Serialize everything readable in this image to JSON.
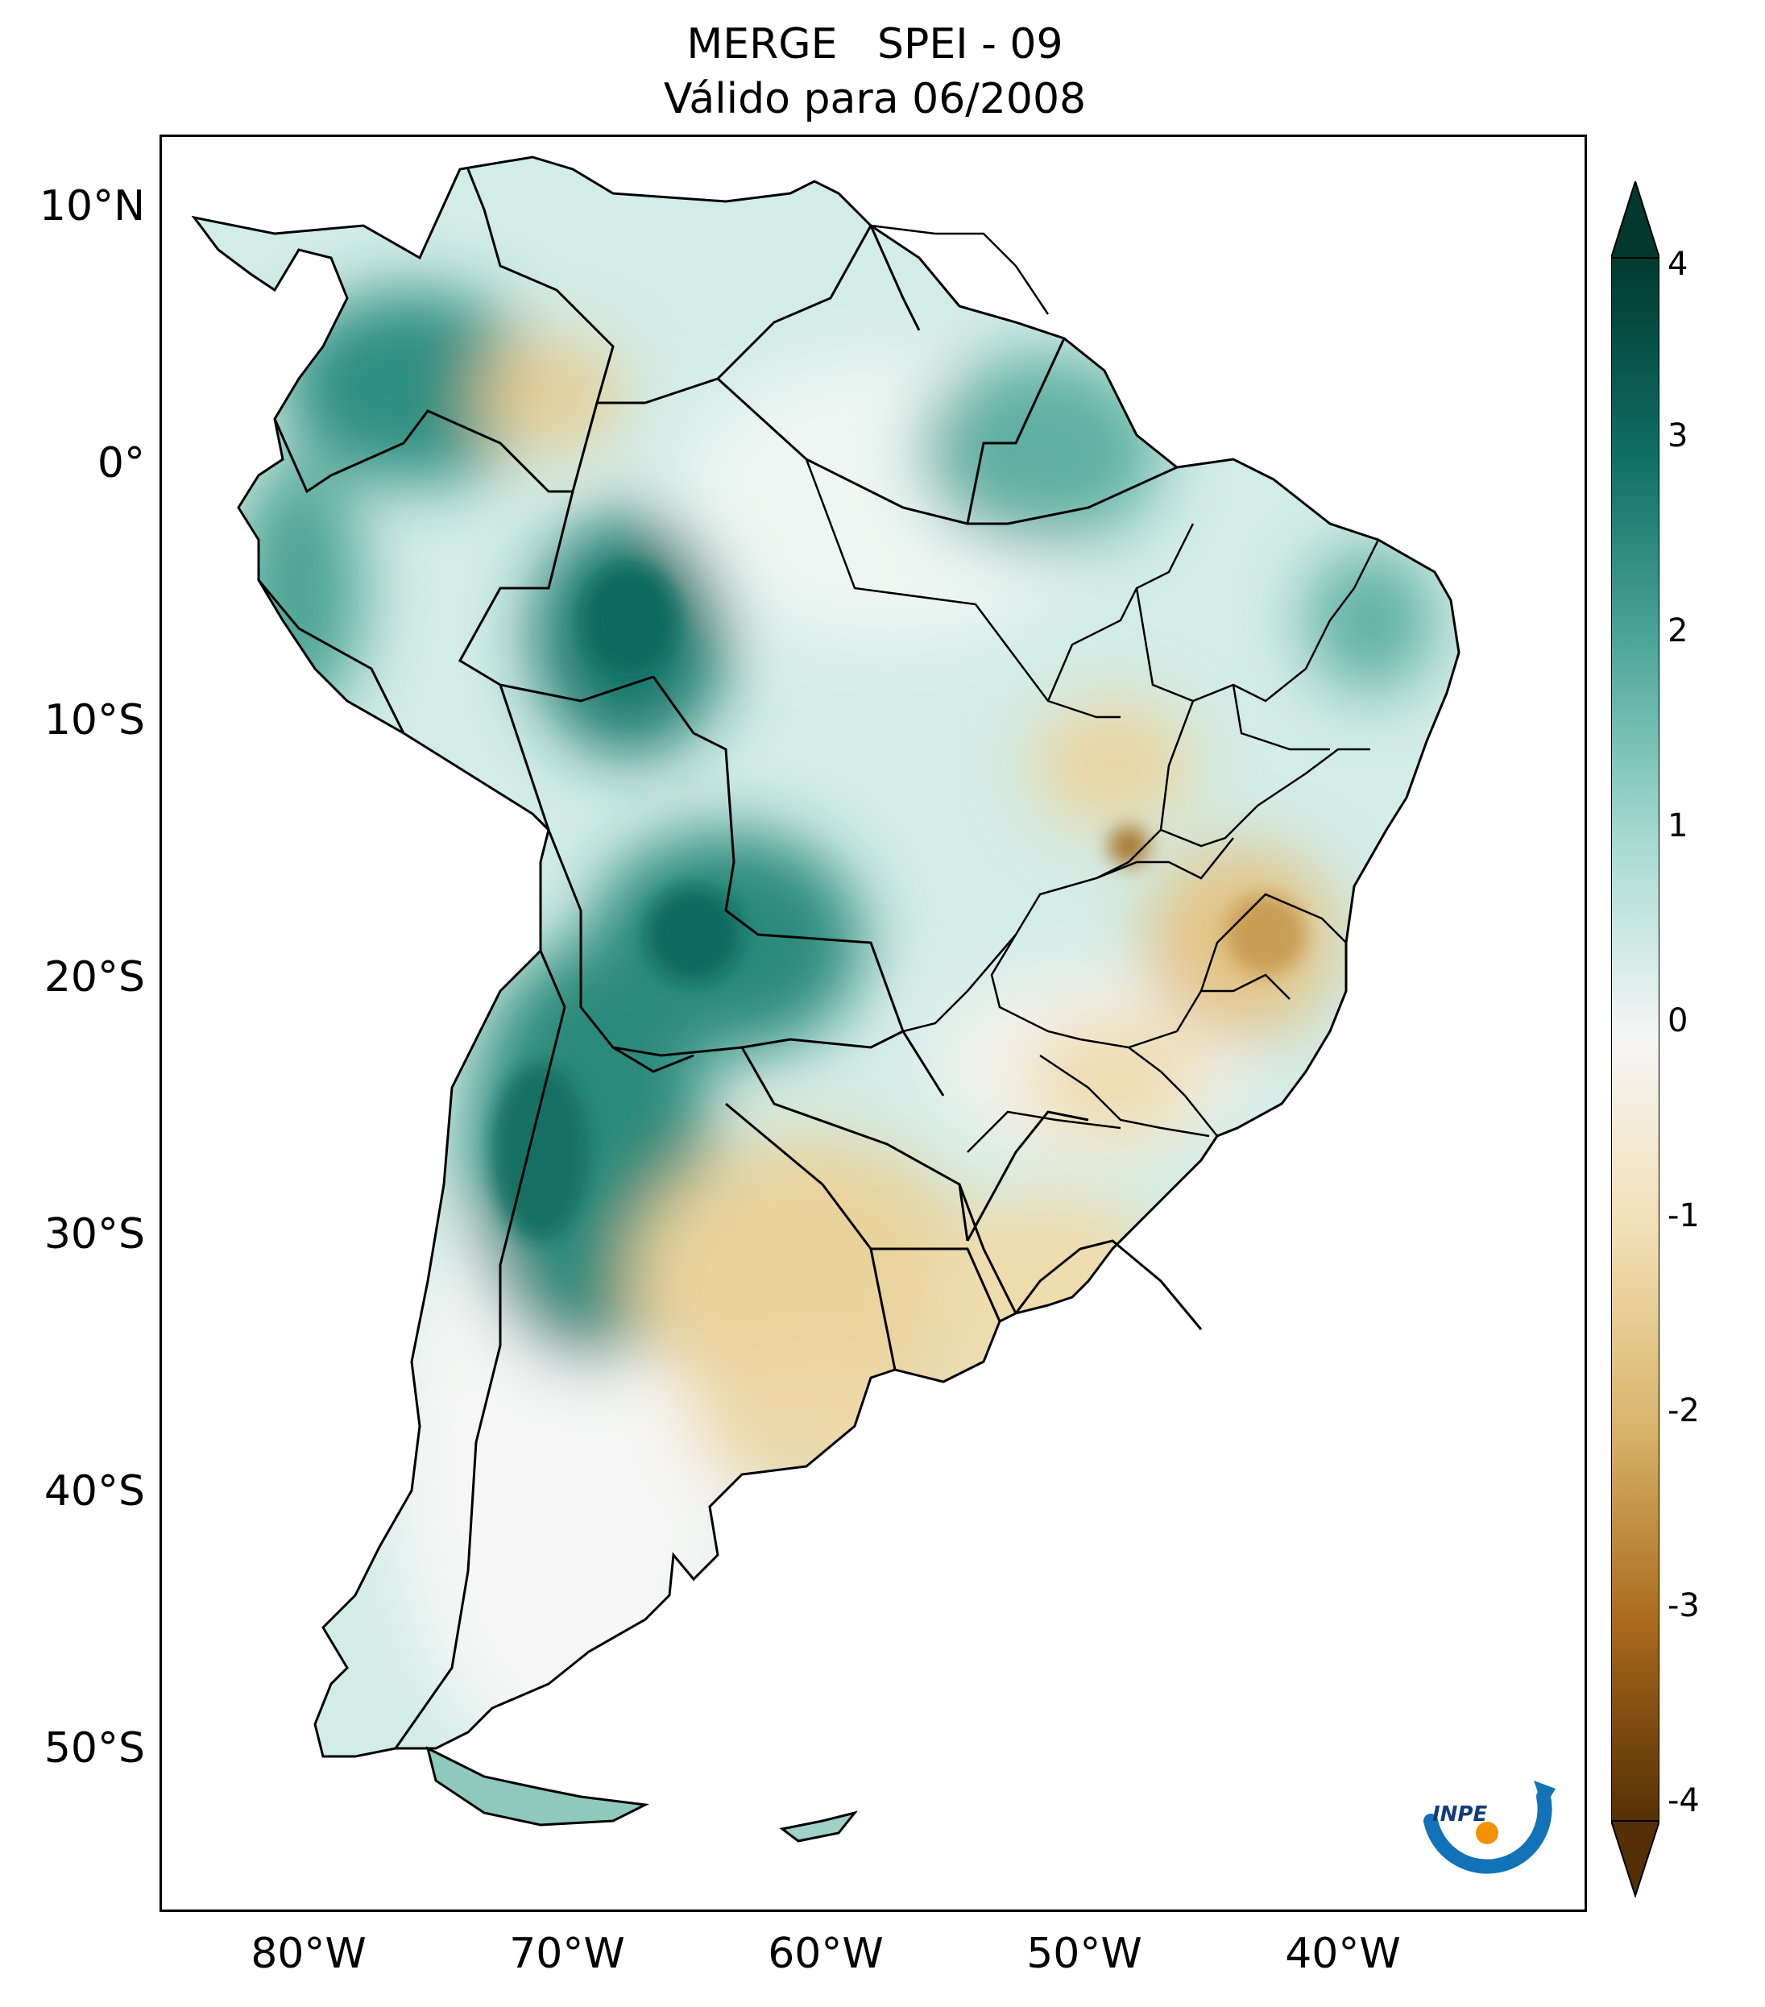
{
  "title": {
    "line1": "MERGE   SPEI - 09",
    "line2": "Válido para 06/2008"
  },
  "map": {
    "type": "geographic-raster",
    "region": "South America",
    "variable": "SPEI-09",
    "lon_range": [
      -85,
      -30
    ],
    "lat_range": [
      -56,
      13
    ],
    "lat_ticks": [
      {
        "value": 10,
        "label": "10°N"
      },
      {
        "value": 0,
        "label": "0°"
      },
      {
        "value": -10,
        "label": "10°S"
      },
      {
        "value": -20,
        "label": "20°S"
      },
      {
        "value": -30,
        "label": "30°S"
      },
      {
        "value": -40,
        "label": "40°S"
      },
      {
        "value": -50,
        "label": "50°S"
      }
    ],
    "lon_ticks": [
      {
        "value": -80,
        "label": "80°W"
      },
      {
        "value": -70,
        "label": "70°W"
      },
      {
        "value": -60,
        "label": "60°W"
      },
      {
        "value": -50,
        "label": "50°W"
      },
      {
        "value": -40,
        "label": "40°W"
      }
    ]
  },
  "colorbar": {
    "range": [
      -4,
      4
    ],
    "extend": "both",
    "ticks": [
      {
        "value": 4,
        "label": "4"
      },
      {
        "value": 3,
        "label": "3"
      },
      {
        "value": 2,
        "label": "2"
      },
      {
        "value": 1,
        "label": "1"
      },
      {
        "value": 0,
        "label": "0"
      },
      {
        "value": -1,
        "label": "-1"
      },
      {
        "value": -2,
        "label": "-2"
      },
      {
        "value": -3,
        "label": "-3"
      },
      {
        "value": -4,
        "label": "-4"
      }
    ],
    "colors": {
      "wet_extreme": "#01392f",
      "wet_strong": "#0f6e63",
      "wet_moderate": "#4fa89a",
      "wet_mild": "#a8dbd2",
      "neutral": "#f6f6f6",
      "dry_mild": "#f1deb3",
      "dry_moderate": "#d8b469",
      "dry_strong": "#a8691b",
      "dry_extreme": "#553006"
    }
  },
  "logo": {
    "text": "INPE",
    "colors": {
      "blue": "#1273b8",
      "orange": "#f39200"
    }
  }
}
